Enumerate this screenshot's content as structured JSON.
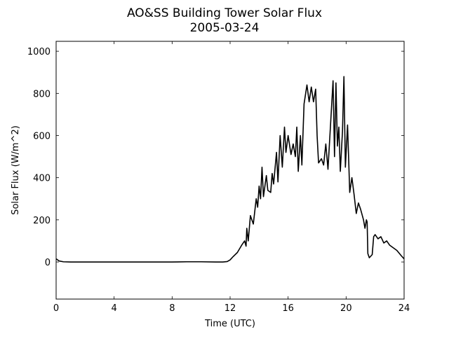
{
  "chart_data": {
    "type": "line",
    "title": "AO&SS Building Tower Solar Flux",
    "subtitle": "2005-03-24",
    "x_label": "Time (UTC)",
    "y_label": "Solar Flux (W/m^2)",
    "xlim": [
      0,
      24
    ],
    "xticks": [
      0,
      4,
      8,
      12,
      16,
      20,
      24
    ],
    "ylim": [
      -176,
      1047
    ],
    "yticks": [
      0,
      200,
      400,
      600,
      800,
      1000
    ],
    "grid": false,
    "series": [
      {
        "name": "Solar Flux",
        "color": "#000000",
        "x": [
          0,
          0.2,
          0.5,
          1,
          2,
          3,
          4,
          5,
          6,
          7,
          8,
          9,
          10,
          11,
          11.5,
          11.8,
          12.0,
          12.2,
          12.5,
          12.8,
          13.0,
          13.1,
          13.15,
          13.25,
          13.4,
          13.6,
          13.8,
          13.9,
          14.0,
          14.1,
          14.2,
          14.3,
          14.5,
          14.6,
          14.8,
          14.9,
          15.0,
          15.2,
          15.3,
          15.45,
          15.6,
          15.75,
          15.85,
          16.0,
          16.2,
          16.35,
          16.5,
          16.6,
          16.7,
          16.85,
          16.95,
          17.1,
          17.3,
          17.45,
          17.6,
          17.75,
          17.9,
          18.0,
          18.1,
          18.3,
          18.45,
          18.6,
          18.75,
          18.85,
          19.0,
          19.1,
          19.2,
          19.3,
          19.4,
          19.5,
          19.6,
          19.75,
          19.85,
          19.95,
          20.1,
          20.25,
          20.4,
          20.55,
          20.7,
          20.85,
          21.0,
          21.2,
          21.3,
          21.4,
          21.45,
          21.5,
          21.6,
          21.8,
          21.9,
          22.0,
          22.2,
          22.4,
          22.6,
          22.8,
          23.0,
          23.2,
          23.5,
          23.8,
          24
        ],
        "values": [
          15,
          5,
          1,
          0,
          0,
          0,
          0,
          0,
          0,
          0,
          0,
          1,
          1,
          0,
          0,
          2,
          10,
          25,
          45,
          80,
          100,
          75,
          160,
          100,
          220,
          180,
          300,
          260,
          360,
          300,
          450,
          310,
          410,
          340,
          330,
          420,
          370,
          520,
          380,
          600,
          450,
          640,
          520,
          600,
          510,
          560,
          500,
          640,
          430,
          600,
          460,
          750,
          840,
          760,
          830,
          760,
          820,
          600,
          470,
          490,
          460,
          560,
          440,
          560,
          740,
          860,
          500,
          850,
          550,
          640,
          430,
          620,
          880,
          450,
          650,
          330,
          400,
          320,
          230,
          280,
          250,
          200,
          160,
          200,
          190,
          40,
          20,
          35,
          120,
          130,
          110,
          120,
          90,
          100,
          80,
          70,
          55,
          30,
          15
        ]
      }
    ]
  }
}
